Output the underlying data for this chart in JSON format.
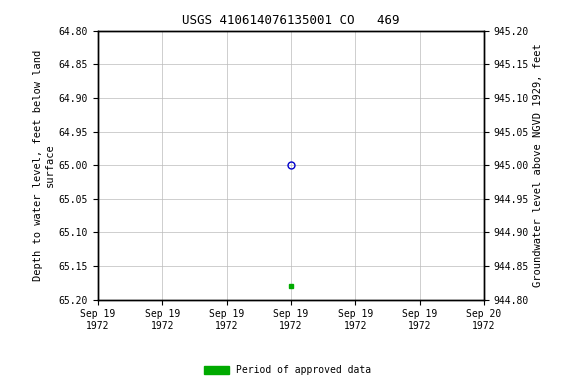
{
  "title": "USGS 410614076135001 CO   469",
  "ylabel_left": "Depth to water level, feet below land\nsurface",
  "ylabel_right": "Groundwater level above NGVD 1929, feet",
  "ylim_left_bottom": 65.2,
  "ylim_left_top": 64.8,
  "ylim_right_bottom": 944.8,
  "ylim_right_top": 945.2,
  "yticks_left": [
    64.8,
    64.85,
    64.9,
    64.95,
    65.0,
    65.05,
    65.1,
    65.15,
    65.2
  ],
  "yticks_right": [
    944.8,
    944.85,
    944.9,
    944.95,
    945.0,
    945.05,
    945.1,
    945.15,
    945.2
  ],
  "data_point_y_depth": 65.0,
  "data_point_marker": "o",
  "data_point_color": "#0000cc",
  "approved_point_y_depth": 65.18,
  "approved_point_color": "#00aa00",
  "approved_point_marker": "s",
  "approved_point_size": 3,
  "grid_color": "#bbbbbb",
  "background_color": "#ffffff",
  "font_family": "monospace",
  "title_fontsize": 9,
  "axis_label_fontsize": 7.5,
  "tick_fontsize": 7,
  "legend_label": "Period of approved data",
  "total_hours": 36,
  "dp_hour": 18,
  "xtick_hours": [
    6,
    12,
    18,
    24,
    30,
    36
  ],
  "xtick_labels_first6": [
    "Sep 19\n1972",
    "Sep 19\n1972",
    "Sep 19\n1972",
    "Sep 19\n1972",
    "Sep 19\n1972",
    "Sep 19\n1972"
  ],
  "xtick_label_last": "Sep 20\n1972"
}
